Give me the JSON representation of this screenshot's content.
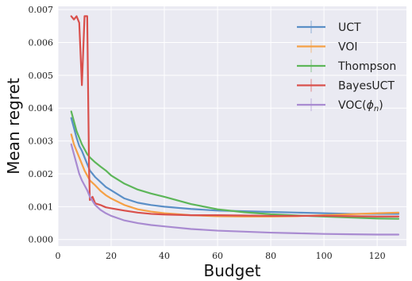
{
  "chart_data": {
    "type": "line",
    "xlabel": "Budget",
    "ylabel": "Mean regret",
    "xlim": [
      0,
      131
    ],
    "ylim": [
      -0.0002,
      0.0071
    ],
    "xticks": [
      0,
      20,
      40,
      60,
      80,
      100,
      120
    ],
    "xtick_labels": [
      "0",
      "20",
      "40",
      "60",
      "80",
      "100",
      "120"
    ],
    "yticks": [
      0.0,
      0.001,
      0.002,
      0.003,
      0.004,
      0.005,
      0.006,
      0.007
    ],
    "ytick_labels": [
      "0.000",
      "0.001",
      "0.002",
      "0.003",
      "0.004",
      "0.005",
      "0.006",
      "0.007"
    ],
    "grid": true,
    "legend_position": "top-right",
    "colors": {
      "background": "#eaeaf2",
      "grid": "#ffffff",
      "UCT": "#5b8fc7",
      "VOI": "#f5a045",
      "Thompson": "#5db659",
      "BayesUCT": "#d9504c",
      "VOC": "#a98bd1"
    },
    "series": [
      {
        "name": "UCT",
        "color_key": "UCT",
        "x": [
          5,
          6,
          7,
          8,
          9,
          10,
          11,
          12,
          14,
          16,
          18,
          20,
          25,
          30,
          35,
          40,
          50,
          60,
          70,
          80,
          90,
          100,
          110,
          120,
          128
        ],
        "y": [
          0.0037,
          0.0034,
          0.0031,
          0.00285,
          0.0027,
          0.0025,
          0.0023,
          0.0021,
          0.0019,
          0.00175,
          0.0016,
          0.0015,
          0.00125,
          0.00112,
          0.00105,
          0.001,
          0.00093,
          0.00088,
          0.00086,
          0.00084,
          0.00082,
          0.0008,
          0.00078,
          0.00078,
          0.00078
        ]
      },
      {
        "name": "VOI",
        "color_key": "VOI",
        "x": [
          5,
          6,
          7,
          8,
          9,
          10,
          11,
          12,
          14,
          16,
          18,
          20,
          25,
          30,
          35,
          40,
          50,
          60,
          70,
          80,
          90,
          100,
          110,
          120,
          128
        ],
        "y": [
          0.0032,
          0.0029,
          0.0027,
          0.0025,
          0.0023,
          0.0021,
          0.00195,
          0.0018,
          0.00165,
          0.00148,
          0.00135,
          0.00125,
          0.00105,
          0.00092,
          0.00085,
          0.0008,
          0.00074,
          0.00071,
          0.0007,
          0.0007,
          0.00071,
          0.00074,
          0.00077,
          0.0008,
          0.00082
        ]
      },
      {
        "name": "Thompson",
        "color_key": "Thompson",
        "x": [
          5,
          6,
          7,
          8,
          9,
          10,
          11,
          12,
          14,
          16,
          18,
          20,
          25,
          30,
          35,
          40,
          50,
          60,
          70,
          80,
          90,
          100,
          110,
          120,
          128
        ],
        "y": [
          0.0039,
          0.0036,
          0.0033,
          0.0031,
          0.0029,
          0.00275,
          0.0026,
          0.0025,
          0.00235,
          0.00222,
          0.0021,
          0.00195,
          0.0017,
          0.00152,
          0.0014,
          0.0013,
          0.00108,
          0.00092,
          0.00083,
          0.00077,
          0.00073,
          0.0007,
          0.00067,
          0.00064,
          0.00063
        ]
      },
      {
        "name": "BayesUCT",
        "color_key": "BayesUCT",
        "x": [
          5,
          6,
          7,
          8,
          9,
          10,
          11,
          11.7,
          12,
          13,
          14,
          16,
          18,
          20,
          25,
          30,
          35,
          40,
          50,
          60,
          70,
          80,
          90,
          100,
          110,
          120,
          128
        ],
        "y": [
          0.0068,
          0.0067,
          0.0068,
          0.0066,
          0.0047,
          0.0068,
          0.0068,
          0.0021,
          0.0012,
          0.0013,
          0.0011,
          0.00105,
          0.00098,
          0.00095,
          0.00088,
          0.00082,
          0.00078,
          0.00076,
          0.00074,
          0.00074,
          0.00073,
          0.00072,
          0.00072,
          0.00072,
          0.00071,
          0.0007,
          0.0007
        ]
      },
      {
        "name": "VOC($\\phi_n$)",
        "color_key": "VOC",
        "x": [
          5,
          6,
          7,
          8,
          9,
          10,
          11,
          12,
          14,
          16,
          18,
          20,
          25,
          30,
          35,
          40,
          50,
          60,
          70,
          80,
          90,
          100,
          110,
          120,
          128
        ],
        "y": [
          0.0029,
          0.0026,
          0.0023,
          0.002,
          0.0018,
          0.00165,
          0.0015,
          0.0013,
          0.00105,
          0.0009,
          0.0008,
          0.00072,
          0.00058,
          0.0005,
          0.00044,
          0.0004,
          0.00032,
          0.00027,
          0.00024,
          0.00021,
          0.00019,
          0.00017,
          0.00016,
          0.00015,
          0.00015
        ]
      }
    ]
  }
}
